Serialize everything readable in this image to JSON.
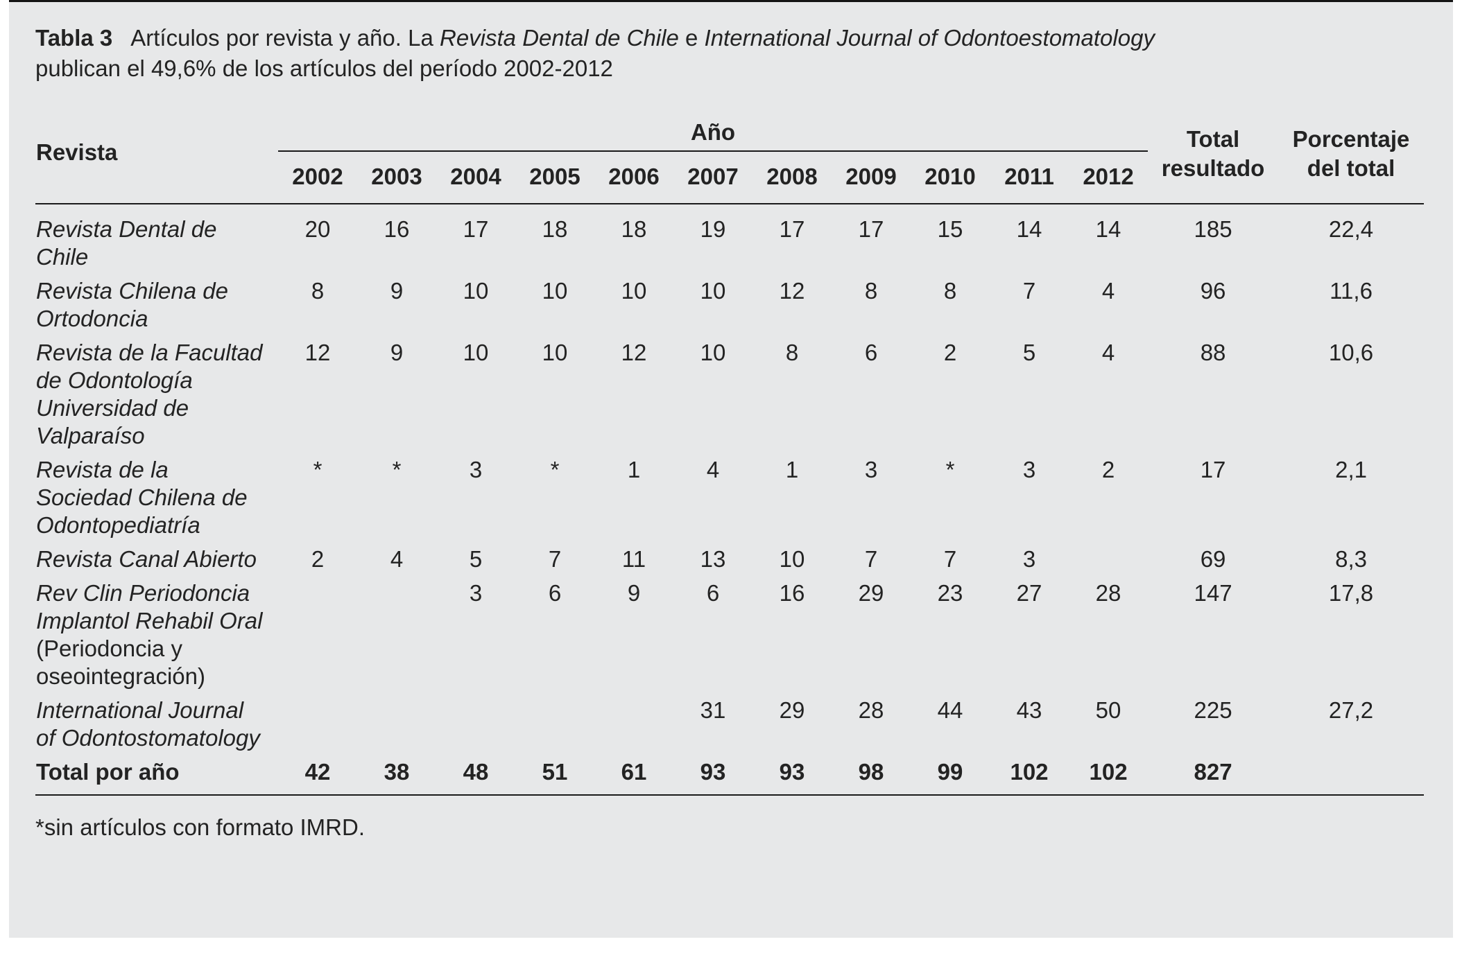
{
  "title": {
    "label": "Tabla 3",
    "text1": "Artículos por revista y año. La ",
    "journal1": "Revista Dental de Chile",
    "text2": " e ",
    "journal2": "International Journal of Odontoestomatology",
    "line2": "publican el 49,6% de los artículos del período 2002-2012"
  },
  "table": {
    "col_revista": "Revista",
    "col_year_group": "Año",
    "years": [
      "2002",
      "2003",
      "2004",
      "2005",
      "2006",
      "2007",
      "2008",
      "2009",
      "2010",
      "2011",
      "2012"
    ],
    "col_total": "Total resultado",
    "col_pct": "Porcentaje del total",
    "rows": [
      {
        "name_italic": "Revista Dental de Chile",
        "name_roman": "",
        "values": [
          "20",
          "16",
          "17",
          "18",
          "18",
          "19",
          "17",
          "17",
          "15",
          "14",
          "14"
        ],
        "total": "185",
        "pct": "22,4"
      },
      {
        "name_italic": "Revista Chilena de Ortodoncia",
        "name_roman": "",
        "values": [
          "8",
          "9",
          "10",
          "10",
          "10",
          "10",
          "12",
          "8",
          "8",
          "7",
          "4"
        ],
        "total": "96",
        "pct": "11,6"
      },
      {
        "name_italic": "Revista de la Facultad de Odontología Universidad de Valparaíso",
        "name_roman": "",
        "values": [
          "12",
          "9",
          "10",
          "10",
          "12",
          "10",
          "8",
          "6",
          "2",
          "5",
          "4"
        ],
        "total": "88",
        "pct": "10,6"
      },
      {
        "name_italic": "Revista de la Sociedad Chilena de Odontopediatría",
        "name_roman": "",
        "values": [
          "*",
          "*",
          "3",
          "*",
          "1",
          "4",
          "1",
          "3",
          "*",
          "3",
          "2"
        ],
        "total": "17",
        "pct": "2,1"
      },
      {
        "name_italic": "Revista Canal Abierto",
        "name_roman": "",
        "values": [
          "2",
          "4",
          "5",
          "7",
          "11",
          "13",
          "10",
          "7",
          "7",
          "3",
          ""
        ],
        "total": "69",
        "pct": "8,3"
      },
      {
        "name_italic": "Rev Clin Periodoncia Implantol Rehabil Oral",
        "name_roman": " (Periodoncia y oseointegración)",
        "values": [
          "",
          "",
          "3",
          "6",
          "9",
          "6",
          "16",
          "29",
          "23",
          "27",
          "28"
        ],
        "total": "147",
        "pct": "17,8"
      },
      {
        "name_italic": "International Journal of Odontostomatology",
        "name_roman": "",
        "values": [
          "",
          "",
          "",
          "",
          "",
          "31",
          "29",
          "28",
          "44",
          "43",
          "50"
        ],
        "total": "225",
        "pct": "27,2"
      }
    ],
    "total_row": {
      "label": "Total por año",
      "values": [
        "42",
        "38",
        "48",
        "51",
        "61",
        "93",
        "93",
        "98",
        "99",
        "102",
        "102"
      ],
      "total": "827",
      "pct": ""
    }
  },
  "footnote": "*sin artículos con formato IMRD."
}
